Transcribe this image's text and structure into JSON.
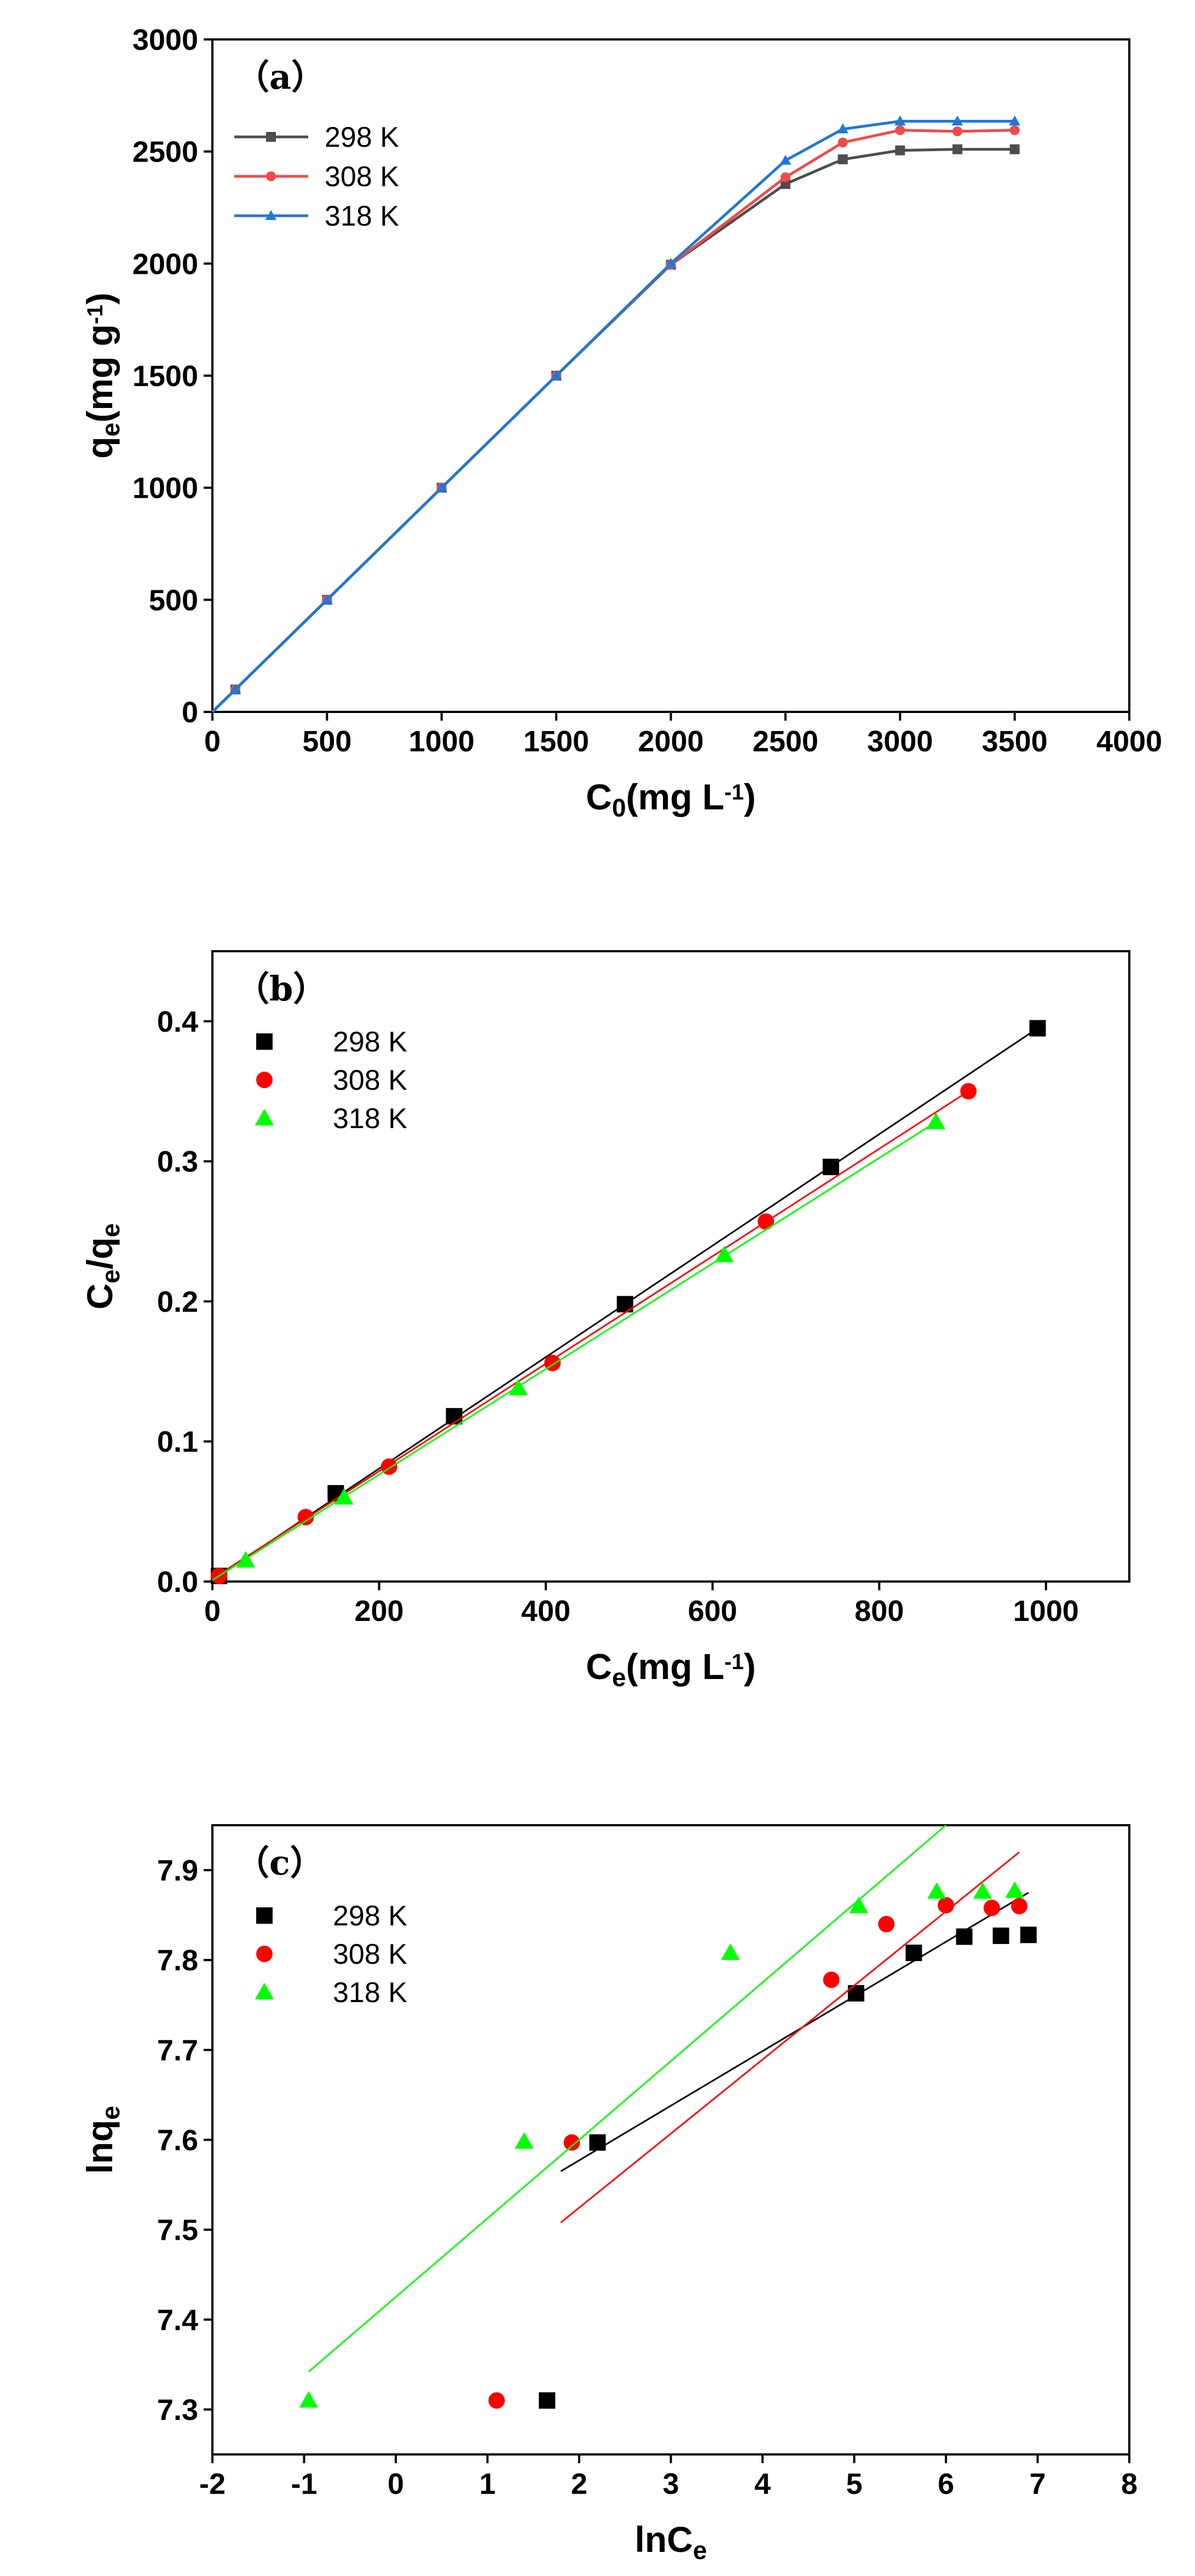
{
  "chart_data": [
    {
      "type": "line",
      "panel_label": "（a）",
      "xlabel": {
        "main": "C",
        "sub": "0",
        "rest": "(mg L",
        "sup": "-1",
        "end": ")"
      },
      "ylabel": {
        "main": "q",
        "sub": "e",
        "rest": "(mg g",
        "sup": "-1",
        "end": ")"
      },
      "xlim": [
        0,
        4000
      ],
      "ylim": [
        0,
        3000
      ],
      "xticks": [
        0,
        500,
        1000,
        1500,
        2000,
        2500,
        3000,
        3500,
        4000
      ],
      "yticks": [
        0,
        500,
        1000,
        1500,
        2000,
        2500,
        3000
      ],
      "grid": false,
      "legend_position": "top-left",
      "x": [
        0,
        100,
        500,
        1000,
        1500,
        2000,
        2500,
        2750,
        3000,
        3250,
        3500
      ],
      "series": [
        {
          "name": "298 K",
          "color": "#4d4d4d",
          "marker": "square",
          "values": [
            0,
            100,
            500,
            1000,
            1500,
            1995,
            2355,
            2465,
            2505,
            2510,
            2510
          ]
        },
        {
          "name": "308 K",
          "color": "#ef4b4b",
          "marker": "circle",
          "values": [
            0,
            100,
            500,
            1000,
            1500,
            1995,
            2385,
            2540,
            2595,
            2590,
            2595
          ]
        },
        {
          "name": "318 K",
          "color": "#1f78d4",
          "marker": "triangle",
          "values": [
            0,
            100,
            500,
            1000,
            1500,
            2000,
            2460,
            2600,
            2635,
            2635,
            2635
          ]
        }
      ]
    },
    {
      "type": "scatter",
      "panel_label": "（b）",
      "xlabel": {
        "main": "C",
        "sub": "e",
        "rest": "(mg L",
        "sup": "-1",
        "end": ")"
      },
      "ylabel": {
        "main": "C",
        "sub": "e",
        "rest": "/q",
        "sub2": "e"
      },
      "xlim": [
        0,
        1100
      ],
      "ylim": [
        0,
        0.45
      ],
      "xticks": [
        0,
        200,
        400,
        600,
        800,
        1000
      ],
      "yticks": [
        "0.0",
        "0.1",
        "0.2",
        "0.3",
        "0.4"
      ],
      "grid": false,
      "legend_position": "top-left",
      "series": [
        {
          "name": "298 K",
          "color": "#000000",
          "marker": "square",
          "points": [
            [
              8,
              0.004
            ],
            [
              148,
              0.063
            ],
            [
              290,
              0.118
            ],
            [
              495,
              0.198
            ],
            [
              742,
              0.296
            ],
            [
              990,
              0.395
            ]
          ],
          "fit": [
            [
              0,
              0.001
            ],
            [
              990,
              0.395
            ]
          ]
        },
        {
          "name": "308 K",
          "color": "#ff0000",
          "marker": "circle",
          "points": [
            [
              8,
              0.004
            ],
            [
              112,
              0.046
            ],
            [
              212,
              0.082
            ],
            [
              408,
              0.156
            ],
            [
              664,
              0.257
            ],
            [
              907,
              0.35
            ]
          ],
          "fit": [
            [
              0,
              0.002
            ],
            [
              907,
              0.35
            ]
          ]
        },
        {
          "name": "318 K",
          "color": "#00ff00",
          "marker": "triangle",
          "points": [
            [
              40,
              0.015
            ],
            [
              158,
              0.06
            ],
            [
              367,
              0.138
            ],
            [
              614,
              0.233
            ],
            [
              868,
              0.328
            ]
          ],
          "fit": [
            [
              0,
              0.001
            ],
            [
              868,
              0.328
            ]
          ]
        }
      ]
    },
    {
      "type": "scatter",
      "panel_label": "（c）",
      "xlabel": {
        "main": "lnC",
        "sub": "e"
      },
      "ylabel": {
        "main": "lnq",
        "sub": "e"
      },
      "xlim": [
        -2,
        8
      ],
      "ylim": [
        7.25,
        7.95
      ],
      "xticks": [
        -2,
        -1,
        0,
        1,
        2,
        3,
        4,
        5,
        6,
        7,
        8
      ],
      "yticks": [
        "7.3",
        "7.4",
        "7.5",
        "7.6",
        "7.7",
        "7.8",
        "7.9"
      ],
      "grid": false,
      "legend_position": "top-left",
      "series": [
        {
          "name": "298 K",
          "color": "#000000",
          "marker": "square",
          "points": [
            [
              1.65,
              7.31
            ],
            [
              2.2,
              7.597
            ],
            [
              5.02,
              7.763
            ],
            [
              5.65,
              7.808
            ],
            [
              6.2,
              7.826
            ],
            [
              6.6,
              7.827
            ],
            [
              6.9,
              7.828
            ]
          ],
          "fit": [
            [
              1.8,
              7.565
            ],
            [
              6.9,
              7.875
            ]
          ]
        },
        {
          "name": "308 K",
          "color": "#ff0000",
          "marker": "circle",
          "points": [
            [
              1.1,
              7.31
            ],
            [
              1.92,
              7.597
            ],
            [
              4.75,
              7.778
            ],
            [
              5.35,
              7.84
            ],
            [
              6.0,
              7.861
            ],
            [
              6.5,
              7.858
            ],
            [
              6.8,
              7.86
            ]
          ],
          "fit": [
            [
              1.8,
              7.508
            ],
            [
              6.8,
              7.92
            ]
          ]
        },
        {
          "name": "318 K",
          "color": "#00ff00",
          "marker": "triangle",
          "points": [
            [
              -0.95,
              7.31
            ],
            [
              1.4,
              7.598
            ],
            [
              3.65,
              7.808
            ],
            [
              5.05,
              7.86
            ],
            [
              5.9,
              7.876
            ],
            [
              6.4,
              7.876
            ],
            [
              6.75,
              7.877
            ]
          ],
          "fit": [
            [
              -0.95,
              7.342
            ],
            [
              6.0,
              7.95
            ]
          ]
        }
      ]
    }
  ]
}
